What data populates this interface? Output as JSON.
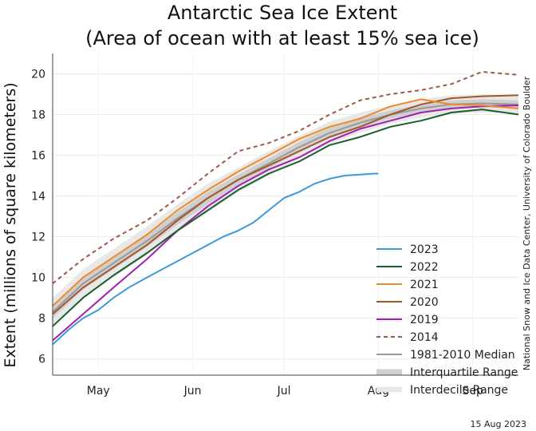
{
  "chart_data": {
    "type": "line",
    "title": [
      "Antarctic Sea Ice Extent",
      "(Area of ocean with at least 15% sea ice)"
    ],
    "ylabel": "Extent (millions of square kilometers)",
    "xlabel": "",
    "ylim": [
      5.2,
      21
    ],
    "xlim": [
      0,
      153
    ],
    "yticks": [
      6,
      8,
      10,
      12,
      14,
      16,
      18,
      20
    ],
    "month_ticks": [
      {
        "label": "May",
        "x": 15
      },
      {
        "label": "Jun",
        "x": 46
      },
      {
        "label": "Jul",
        "x": 76
      },
      {
        "label": "Aug",
        "x": 107
      },
      {
        "label": "Sep",
        "x": 138
      }
    ],
    "grid": true,
    "legend_position": "bottom-right",
    "credit": "National Snow and Ice Data Center, University of Colorado Boulder",
    "date_label": "15 Aug 2023",
    "median": {
      "name": "1981-2010 Median",
      "color": "#999999",
      "x": [
        0,
        10,
        20,
        31,
        41,
        51,
        61,
        71,
        81,
        91,
        101,
        111,
        121,
        131,
        141,
        153
      ],
      "y": [
        8.3,
        9.7,
        10.7,
        11.8,
        12.9,
        13.9,
        14.8,
        15.6,
        16.4,
        17.1,
        17.6,
        18.0,
        18.3,
        18.5,
        18.55,
        18.5
      ]
    },
    "interquartile": {
      "name": "Interquartile Range",
      "color": "#cfcfcf",
      "x": [
        0,
        10,
        20,
        31,
        41,
        51,
        61,
        71,
        81,
        91,
        101,
        111,
        121,
        131,
        141,
        153
      ],
      "lower": [
        8.0,
        9.4,
        10.4,
        11.5,
        12.6,
        13.6,
        14.55,
        15.35,
        16.15,
        16.85,
        17.35,
        17.8,
        18.1,
        18.3,
        18.35,
        18.3
      ],
      "upper": [
        8.6,
        10.0,
        11.0,
        12.1,
        13.2,
        14.2,
        15.05,
        15.85,
        16.65,
        17.35,
        17.85,
        18.2,
        18.5,
        18.7,
        18.75,
        18.7
      ]
    },
    "interdecile": {
      "name": "Interdecile Range",
      "color": "#e8e8e8",
      "x": [
        0,
        10,
        20,
        31,
        41,
        51,
        61,
        71,
        81,
        91,
        101,
        111,
        121,
        131,
        141,
        153
      ],
      "lower": [
        7.6,
        9.0,
        10.0,
        11.1,
        12.2,
        13.2,
        14.2,
        15.0,
        15.85,
        16.55,
        17.1,
        17.55,
        17.85,
        18.05,
        18.1,
        18.05
      ],
      "upper": [
        9.0,
        10.4,
        11.4,
        12.5,
        13.6,
        14.6,
        15.4,
        16.2,
        16.95,
        17.65,
        18.1,
        18.45,
        18.75,
        18.95,
        19.0,
        18.95
      ]
    },
    "series": [
      {
        "name": "2023",
        "color": "#3a9bd9",
        "dash": "",
        "x": [
          0,
          5,
          10,
          15,
          20,
          25,
          31,
          36,
          41,
          46,
          51,
          56,
          61,
          66,
          71,
          76,
          81,
          86,
          91,
          96,
          101,
          106,
          107
        ],
        "y": [
          6.7,
          7.4,
          8.0,
          8.4,
          9.0,
          9.5,
          10.0,
          10.4,
          10.8,
          11.2,
          11.6,
          12.0,
          12.3,
          12.7,
          13.3,
          13.9,
          14.2,
          14.6,
          14.85,
          15.0,
          15.05,
          15.1,
          15.1
        ]
      },
      {
        "name": "2022",
        "color": "#1a5e2a",
        "dash": "",
        "x": [
          0,
          10,
          20,
          31,
          41,
          51,
          61,
          71,
          81,
          91,
          101,
          111,
          121,
          131,
          141,
          153
        ],
        "y": [
          7.6,
          9.0,
          10.1,
          11.2,
          12.3,
          13.3,
          14.3,
          15.1,
          15.7,
          16.5,
          16.9,
          17.4,
          17.7,
          18.1,
          18.25,
          18.0
        ]
      },
      {
        "name": "2021",
        "color": "#f0892a",
        "dash": "",
        "x": [
          0,
          10,
          20,
          31,
          41,
          51,
          61,
          71,
          81,
          91,
          101,
          111,
          121,
          131,
          141,
          153
        ],
        "y": [
          8.6,
          10.0,
          11.0,
          12.1,
          13.3,
          14.3,
          15.2,
          16.0,
          16.8,
          17.4,
          17.8,
          18.4,
          18.75,
          18.5,
          18.45,
          18.3
        ]
      },
      {
        "name": "2020",
        "color": "#a3562a",
        "dash": "",
        "x": [
          0,
          10,
          20,
          31,
          41,
          51,
          61,
          71,
          81,
          91,
          101,
          111,
          121,
          131,
          141,
          153
        ],
        "y": [
          8.2,
          9.5,
          10.5,
          11.6,
          12.8,
          13.9,
          14.8,
          15.5,
          16.2,
          16.9,
          17.4,
          18.0,
          18.5,
          18.8,
          18.9,
          18.95
        ]
      },
      {
        "name": "2019",
        "color": "#a020b0",
        "dash": "",
        "x": [
          0,
          10,
          20,
          31,
          41,
          51,
          61,
          71,
          81,
          91,
          101,
          111,
          121,
          131,
          141,
          153
        ],
        "y": [
          6.9,
          8.2,
          9.5,
          10.9,
          12.3,
          13.5,
          14.5,
          15.3,
          15.9,
          16.7,
          17.3,
          17.7,
          18.1,
          18.3,
          18.4,
          18.45
        ]
      },
      {
        "name": "2014",
        "color": "#a0574a",
        "dash": "5,4",
        "x": [
          0,
          10,
          20,
          31,
          41,
          51,
          61,
          71,
          81,
          91,
          101,
          111,
          121,
          131,
          141,
          153
        ],
        "y": [
          9.7,
          10.9,
          11.9,
          12.8,
          13.9,
          15.1,
          16.2,
          16.6,
          17.2,
          18.0,
          18.7,
          19.0,
          19.2,
          19.5,
          20.1,
          19.95
        ]
      }
    ]
  }
}
